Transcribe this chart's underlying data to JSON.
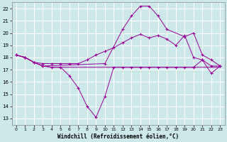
{
  "bg_color": "#cce8e8",
  "grid_color": "#ffffff",
  "line_color": "#990099",
  "title": "Windchill (Refroidissement éolien,°C)",
  "xlim": [
    -0.5,
    23.5
  ],
  "ylim": [
    12.5,
    22.5
  ],
  "yticks": [
    13,
    14,
    15,
    16,
    17,
    18,
    19,
    20,
    21,
    22
  ],
  "xticks": [
    0,
    1,
    2,
    3,
    4,
    5,
    6,
    7,
    8,
    9,
    10,
    11,
    12,
    13,
    14,
    15,
    16,
    17,
    18,
    19,
    20,
    21,
    22,
    23
  ],
  "series": [
    {
      "x": [
        0,
        1,
        2,
        3,
        4,
        5,
        6,
        7,
        8,
        9,
        10,
        11,
        12,
        13,
        14,
        15,
        16,
        17,
        18,
        19,
        20,
        21,
        22,
        23
      ],
      "y": [
        18.2,
        18.0,
        17.6,
        17.3,
        17.2,
        17.2,
        16.5,
        15.5,
        14.0,
        13.1,
        14.8,
        17.2,
        17.2,
        17.2,
        17.2,
        17.2,
        17.2,
        17.2,
        17.2,
        17.2,
        17.2,
        17.8,
        16.7,
        17.3
      ],
      "marker": true
    },
    {
      "x": [
        0,
        1,
        2,
        3,
        4,
        5,
        6,
        7,
        8,
        9,
        10,
        11,
        12,
        13,
        14,
        15,
        16,
        17,
        18,
        19,
        20,
        21,
        22,
        23
      ],
      "y": [
        18.2,
        18.0,
        17.6,
        17.3,
        17.2,
        17.2,
        17.2,
        17.2,
        17.2,
        17.2,
        17.2,
        17.2,
        17.2,
        17.2,
        17.2,
        17.2,
        17.2,
        17.2,
        17.2,
        17.2,
        17.2,
        17.2,
        17.2,
        17.2
      ],
      "marker": false
    },
    {
      "x": [
        0,
        1,
        2,
        3,
        4,
        5,
        6,
        7,
        8,
        9,
        10,
        11,
        12,
        13,
        14,
        15,
        16,
        17,
        18,
        19,
        20,
        21,
        22,
        23
      ],
      "y": [
        18.2,
        18.0,
        17.6,
        17.5,
        17.5,
        17.5,
        17.5,
        17.5,
        17.8,
        18.2,
        18.5,
        18.8,
        19.2,
        19.6,
        19.9,
        19.6,
        19.8,
        19.5,
        19.0,
        19.8,
        18.0,
        17.8,
        17.3,
        17.3
      ],
      "marker": true
    },
    {
      "x": [
        0,
        1,
        2,
        3,
        10,
        12,
        13,
        14,
        15,
        16,
        17,
        19,
        20,
        21,
        22,
        23
      ],
      "y": [
        18.2,
        18.0,
        17.6,
        17.3,
        17.5,
        20.3,
        21.4,
        22.2,
        22.2,
        21.4,
        20.3,
        19.7,
        20.0,
        18.2,
        17.8,
        17.3
      ],
      "marker": true
    }
  ]
}
